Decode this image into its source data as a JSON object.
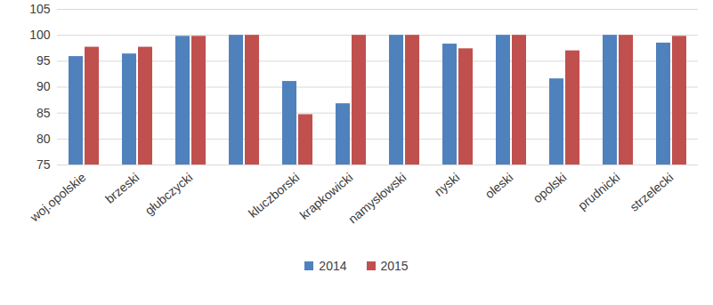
{
  "chart_data": {
    "type": "bar",
    "categories": [
      "woj.opolskie",
      "brzeski",
      "głubczycki",
      null,
      "kluczborski",
      "krapkowicki",
      "namysłowski",
      "nyski",
      "oleski",
      "opolski",
      "prudnicki",
      "strzelecki"
    ],
    "series": [
      {
        "name": "2014",
        "color": "#4f81bd",
        "values": [
          95.9,
          96.4,
          99.8,
          100,
          91.1,
          86.8,
          100,
          98.3,
          100,
          91.6,
          100,
          98.5
        ]
      },
      {
        "name": "2015",
        "color": "#c0504d",
        "values": [
          97.7,
          97.7,
          99.8,
          100,
          84.7,
          100,
          100,
          97.4,
          100,
          97.0,
          100,
          99.8
        ]
      }
    ],
    "ylim": [
      75,
      105
    ],
    "yticks": [
      75,
      80,
      85,
      90,
      95,
      100,
      105
    ],
    "grid": true,
    "legend": "bottom"
  }
}
